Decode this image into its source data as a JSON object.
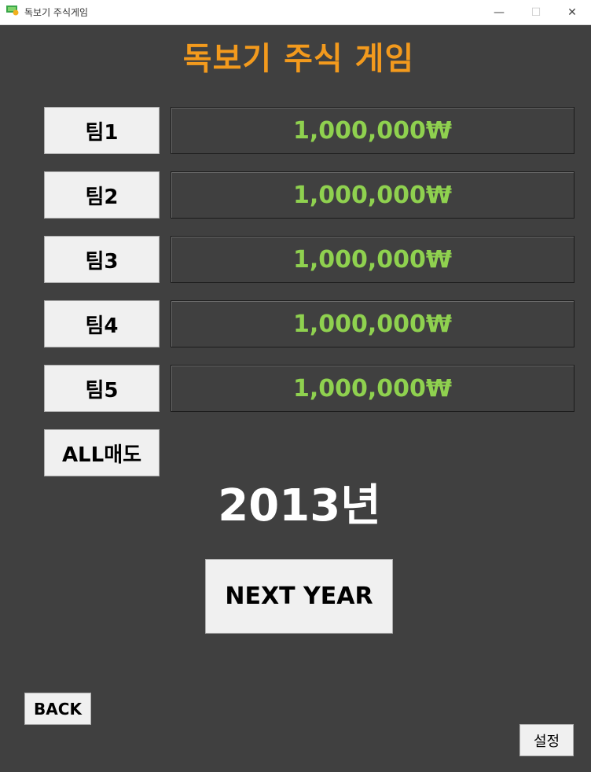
{
  "window": {
    "title": "독보기 주식게임",
    "icon": "stock-app-icon",
    "minimize_glyph": "—",
    "maximize_glyph": "☐",
    "close_glyph": "✕"
  },
  "game_title": "독보기 주식 게임",
  "teams": [
    {
      "label": "팀1",
      "money": "1,000,000₩"
    },
    {
      "label": "팀2",
      "money": "1,000,000₩"
    },
    {
      "label": "팀3",
      "money": "1,000,000₩"
    },
    {
      "label": "팀4",
      "money": "1,000,000₩"
    },
    {
      "label": "팀5",
      "money": "1,000,000₩"
    }
  ],
  "all_sell_label": "ALL매도",
  "year_label": "2013년",
  "next_year_label": "NEXT YEAR",
  "back_label": "BACK",
  "settings_label": "설정",
  "colors": {
    "background": "#404040",
    "title": "#f39a1d",
    "money": "#8fd14f",
    "year": "#ffffff",
    "button_bg": "#f0f0f0"
  }
}
